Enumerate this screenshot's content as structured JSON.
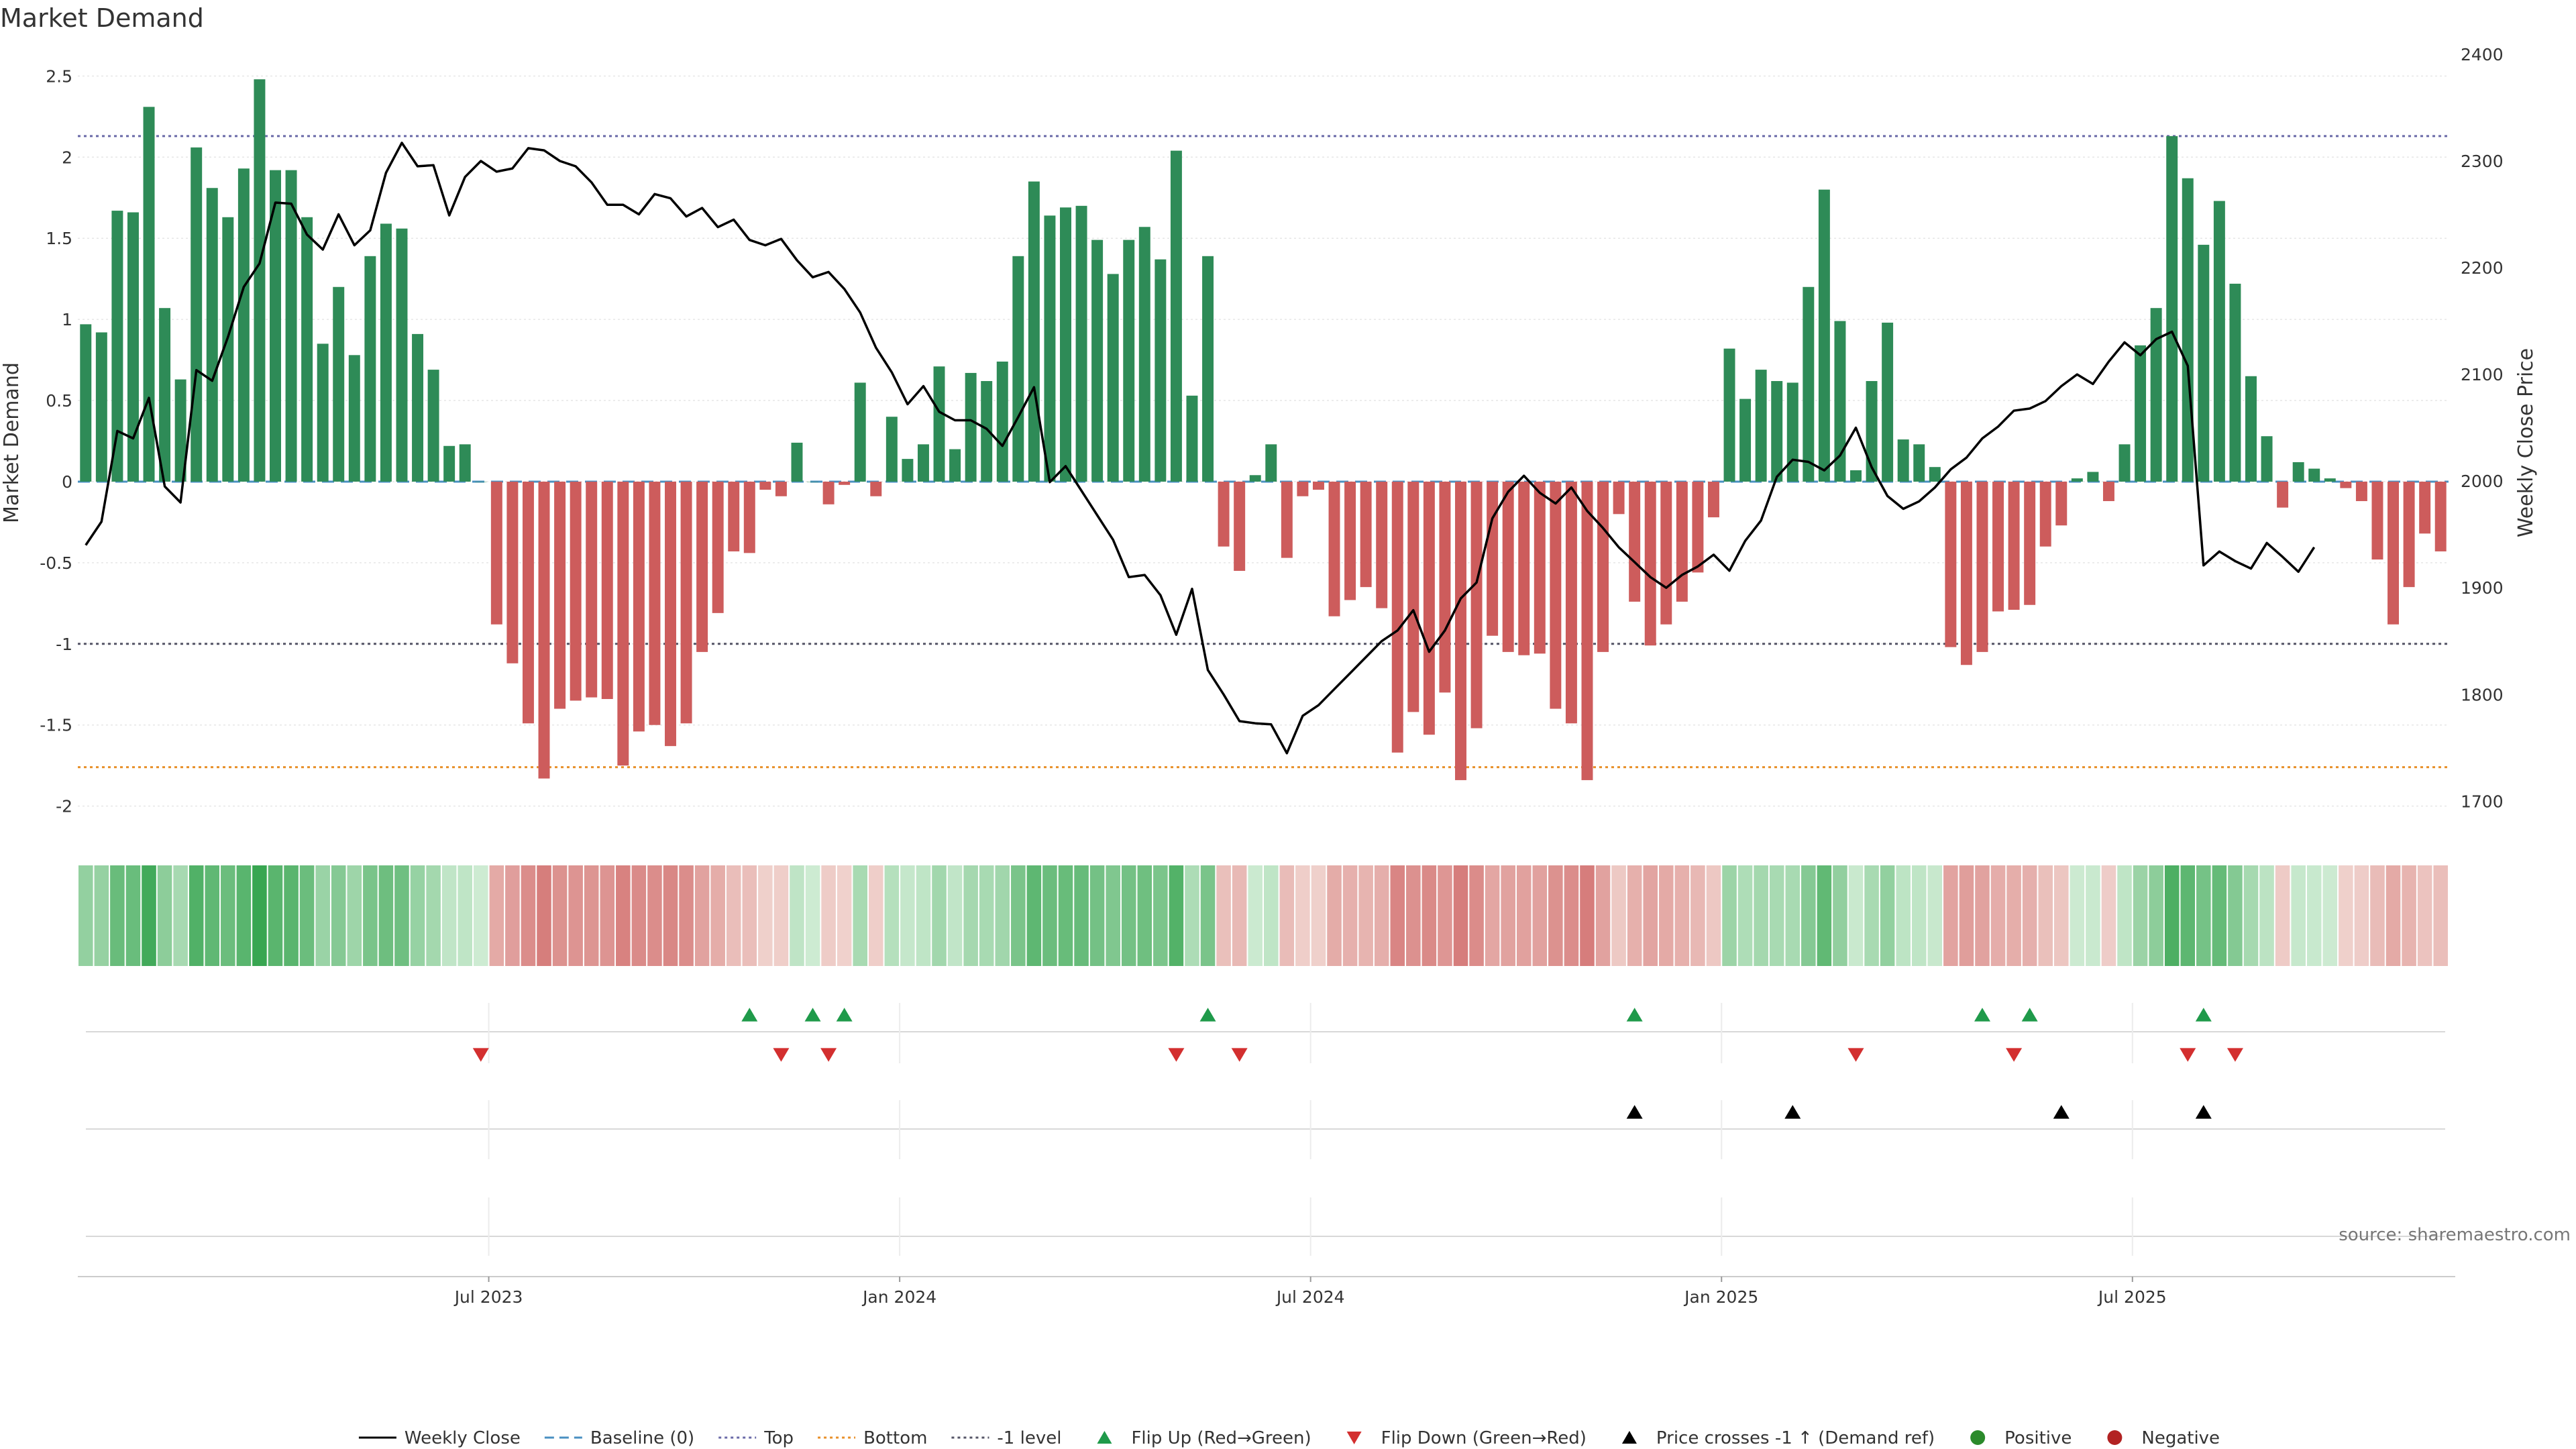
{
  "title": "Market Demand",
  "source": "source: sharemaestro.com",
  "colors": {
    "positive": "#2e8b57",
    "negative": "#cd5c5c",
    "line": "#000000",
    "top": "#6a6aa8",
    "bottom": "#e8902a",
    "minus1": "#555566",
    "flip_up": "#1f9a4a",
    "flip_down": "#d32f2f",
    "cross": "#000000",
    "grid": "#e6e6e6"
  },
  "chart_data": {
    "type": "bar+line",
    "weeks": 142,
    "series": [
      {
        "name": "Market Demand",
        "axis": "left",
        "type": "bar",
        "values": [
          0.97,
          0.92,
          1.67,
          1.66,
          2.31,
          1.07,
          0.63,
          2.06,
          1.81,
          1.63,
          1.93,
          2.48,
          1.92,
          1.92,
          1.63,
          0.85,
          1.2,
          0.78,
          1.39,
          1.59,
          1.56,
          0.91,
          0.69,
          0.22,
          0.23,
          0,
          -0.88,
          -1.12,
          -1.49,
          -1.83,
          -1.4,
          -1.35,
          -1.33,
          -1.34,
          -1.75,
          -1.54,
          -1.5,
          -1.63,
          -1.49,
          -1.05,
          -0.81,
          -0.43,
          -0.44,
          -0.05,
          -0.09,
          0.24,
          0,
          -0.14,
          -0.02,
          0.61,
          -0.09,
          0.4,
          0.14,
          0.23,
          0.71,
          0.2,
          0.67,
          0.62,
          0.74,
          1.39,
          1.85,
          1.64,
          1.69,
          1.7,
          1.49,
          1.28,
          1.49,
          1.57,
          1.37,
          2.04,
          0.53,
          1.39,
          -0.4,
          -0.55,
          0.04,
          0.23,
          -0.47,
          -0.09,
          -0.05,
          -0.83,
          -0.73,
          -0.65,
          -0.78,
          -1.67,
          -1.42,
          -1.56,
          -1.3,
          -1.84,
          -1.52,
          -0.95,
          -1.05,
          -1.07,
          -1.06,
          -1.4,
          -1.49,
          -1.84,
          -1.05,
          -0.2,
          -0.74,
          -1.01,
          -0.88,
          -0.74,
          -0.56,
          -0.22,
          0.82,
          0.51,
          0.69,
          0.62,
          0.61,
          1.2,
          1.8,
          0.99,
          0.07,
          0.62,
          0.98,
          0.26,
          0.23,
          0.09,
          -1.02,
          -1.13,
          -1.05,
          -0.8,
          -0.79,
          -0.76,
          -0.4,
          -0.27,
          0.02,
          0.06,
          -0.12,
          0.23,
          0.84,
          1.07,
          2.13,
          1.87,
          1.46,
          1.73,
          1.22,
          0.65,
          0.28,
          -0.16,
          0.12,
          0.08,
          0.02,
          -0.04,
          -0.12,
          -0.48,
          -0.88,
          -0.65,
          -0.32,
          -0.43
        ]
      },
      {
        "name": "Weekly Close",
        "axis": "right",
        "type": "line",
        "values": [
          1940,
          1962,
          2047,
          2040,
          2078,
          1995,
          1980,
          2104,
          2094,
          2135,
          2182,
          2204,
          2261,
          2260,
          2231,
          2217,
          2250,
          2221,
          2235,
          2289,
          2317,
          2295,
          2296,
          2249,
          2285,
          2300,
          2290,
          2293,
          2312,
          2310,
          2300,
          2295,
          2280,
          2259,
          2259,
          2250,
          2269,
          2265,
          2248,
          2256,
          2238,
          2245,
          2226,
          2221,
          2227,
          2207,
          2191,
          2196,
          2180,
          2158,
          2125,
          2102,
          2072,
          2089,
          2065,
          2057,
          2057,
          2049,
          2033,
          2060,
          2088,
          1999,
          2014,
          1991,
          1968,
          1945,
          1910,
          1912,
          1893,
          1856,
          1899,
          1823,
          1800,
          1775,
          1773,
          1772,
          1745,
          1780,
          1790,
          1805,
          1820,
          1835,
          1850,
          1860,
          1879,
          1840,
          1860,
          1890,
          1905,
          1965,
          1990,
          2005,
          1989,
          1979,
          1994,
          1972,
          1956,
          1938,
          1924,
          1910,
          1900,
          1912,
          1920,
          1931,
          1916,
          1944,
          1963,
          2004,
          2020,
          2018,
          2010,
          2024,
          2050,
          2013,
          1986,
          1974,
          1981,
          1994,
          2011,
          2022,
          2040,
          2051,
          2066,
          2068,
          2075,
          2089,
          2100,
          2091,
          2112,
          2130,
          2118,
          2133,
          2140,
          2108,
          1921,
          1934,
          1925,
          1918,
          1942,
          1929,
          1915,
          1938
        ]
      }
    ],
    "left_axis": {
      "label": "Market Demand",
      "ylim": [
        -2.2,
        2.7
      ],
      "ticks": [
        "2.5",
        "2",
        "1.5",
        "1",
        "0.5",
        "0",
        "-0.5",
        "-1",
        "-1.5",
        "-2"
      ]
    },
    "right_axis": {
      "label": "Weekly Close Price",
      "ylim": [
        1665,
        2410
      ],
      "ticks": [
        "2400",
        "2300",
        "2200",
        "2100",
        "2000",
        "1900",
        "1800",
        "1700"
      ]
    },
    "x_ticks": [
      {
        "label": "Jul 2023",
        "week": 26
      },
      {
        "label": "Jan 2024",
        "week": 52
      },
      {
        "label": "Jul 2024",
        "week": 78
      },
      {
        "label": "Jan 2025",
        "week": 104
      },
      {
        "label": "Jul 2025",
        "week": 130
      }
    ],
    "reference_lines": [
      {
        "name": "Top",
        "value": 2.13
      },
      {
        "name": "Bottom",
        "value": -1.76
      },
      {
        "name": "-1 level",
        "value": -1
      },
      {
        "name": "Baseline (0)",
        "value": 0
      }
    ],
    "flip_up_weeks": [
      42,
      46,
      48,
      71,
      98,
      120,
      123,
      134
    ],
    "flip_down_weeks": [
      25,
      44,
      47,
      69,
      73,
      112,
      122,
      133,
      136
    ],
    "price_cross_weeks": [
      98,
      108,
      125,
      134
    ]
  },
  "legend": [
    {
      "label": "Weekly Close",
      "marker": "line-solid"
    },
    {
      "label": "Baseline (0)",
      "marker": "line-dashed-blue"
    },
    {
      "label": "Top",
      "marker": "line-dotted-purple"
    },
    {
      "label": "Bottom",
      "marker": "line-dotted-orange"
    },
    {
      "label": "-1 level",
      "marker": "line-dotted-gray"
    },
    {
      "label": "Flip Up (Red→Green)",
      "marker": "triangle-up-green"
    },
    {
      "label": "Flip Down (Green→Red)",
      "marker": "triangle-down-red"
    },
    {
      "label": "Price crosses -1 ↑ (Demand ref)",
      "marker": "triangle-up-black"
    },
    {
      "label": "Positive",
      "marker": "circle-green"
    },
    {
      "label": "Negative",
      "marker": "circle-red"
    }
  ]
}
